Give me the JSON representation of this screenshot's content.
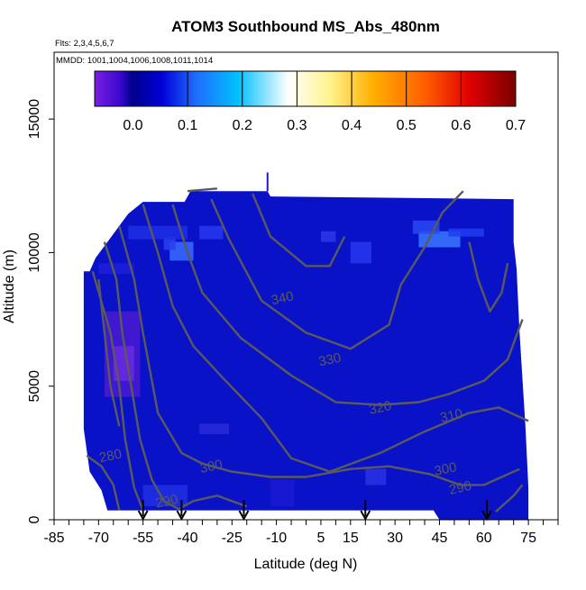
{
  "chart_data": {
    "type": "heatmap",
    "title": "ATOM3 Southbound MS_Abs_480nm",
    "subtitle_flights": "Flts: 2,3,4,5,6,7",
    "subtitle_dates": "MMDD: 1001,1004,1006,1008,1011,1014",
    "xlabel": "Latitude (deg N)",
    "ylabel": "Altitude (m)",
    "xlim": [
      -85,
      85
    ],
    "ylim": [
      0,
      17500
    ],
    "x_ticks_labeled": [
      -85,
      -70,
      -55,
      -40,
      -25,
      -10,
      5,
      15,
      30,
      45,
      60,
      75
    ],
    "x_tick_labels": [
      "-85",
      "-70",
      "-55",
      "-40",
      "-25",
      "-10",
      "5",
      "15",
      "30",
      "45",
      "60",
      "75"
    ],
    "y_ticks": [
      0,
      5000,
      10000,
      15000
    ],
    "y_tick_labels": [
      "0",
      "5000",
      "10000",
      "15000"
    ],
    "colorbar": {
      "range": [
        -0.07,
        0.7
      ],
      "ticks": [
        0.0,
        0.1,
        0.2,
        0.3,
        0.4,
        0.5,
        0.6,
        0.7
      ],
      "tick_labels": [
        "0.0",
        "0.1",
        "0.2",
        "0.3",
        "0.4",
        "0.5",
        "0.6",
        "0.7"
      ],
      "colors": [
        "#7a1fe0",
        "#3a08d0",
        "#00008c",
        "#0000d8",
        "#1f6dff",
        "#00c0ff",
        "#ffffff",
        "#fff38c",
        "#ffb000",
        "#ff5a00",
        "#e00000",
        "#7a0000"
      ]
    },
    "background_value_color": "#0a12c8",
    "contour_color": "#5a5a5a",
    "contour_labels": [
      {
        "text": "340",
        "lat": -8,
        "alt": 8300
      },
      {
        "text": "330",
        "lat": 8,
        "alt": 6000
      },
      {
        "text": "320",
        "lat": 25,
        "alt": 4200
      },
      {
        "text": "310",
        "lat": 49,
        "alt": 3900
      },
      {
        "text": "300",
        "lat": -32,
        "alt": 2000
      },
      {
        "text": "300",
        "lat": 47,
        "alt": 1900
      },
      {
        "text": "290",
        "lat": -47,
        "alt": 700
      },
      {
        "text": "290",
        "lat": 52,
        "alt": 1200
      },
      {
        "text": "280",
        "lat": -66,
        "alt": 2400
      }
    ],
    "profile_arrows_lat": [
      -55,
      -42,
      -21,
      20,
      61
    ]
  }
}
